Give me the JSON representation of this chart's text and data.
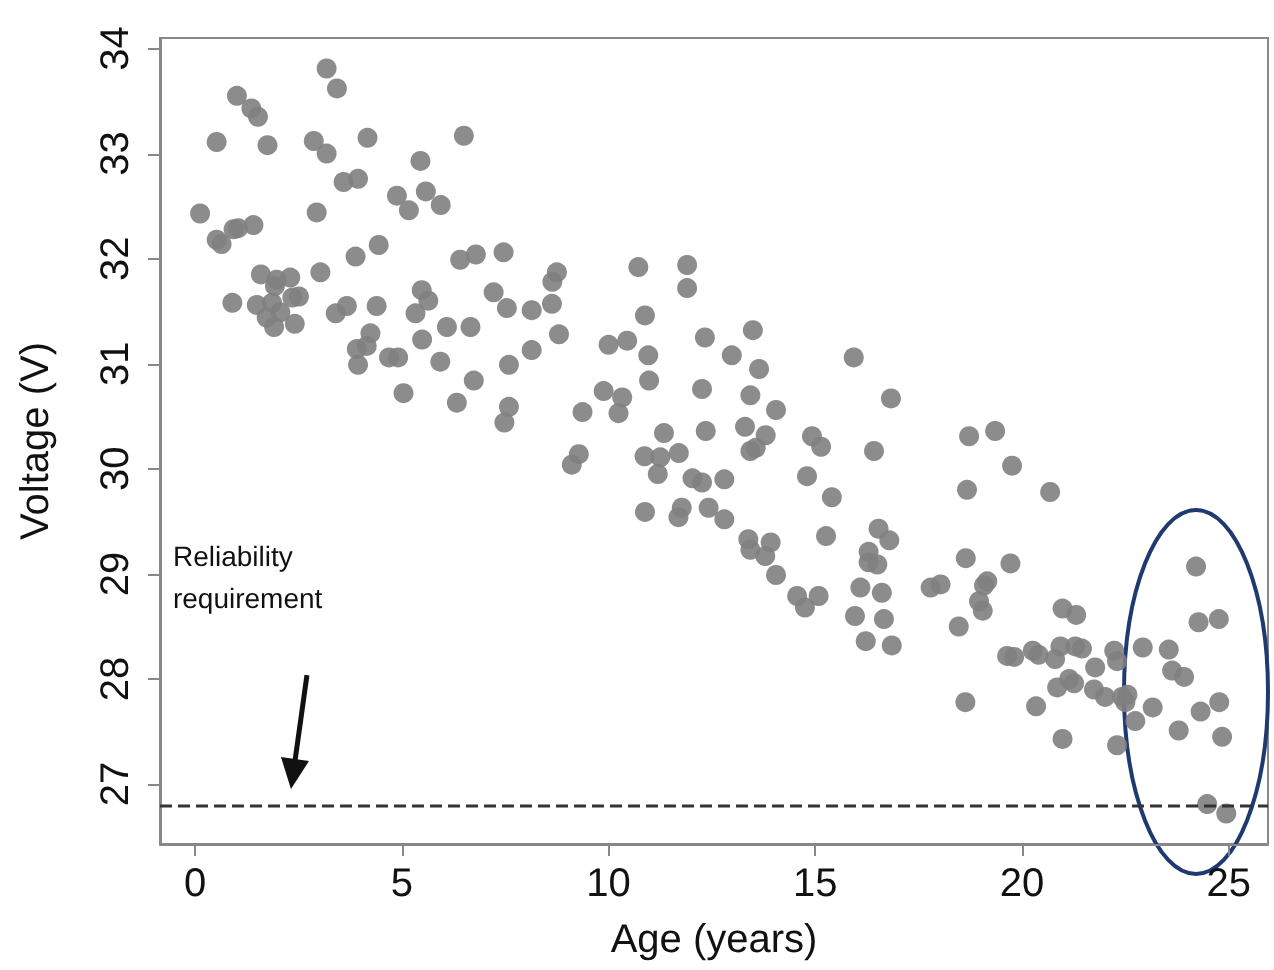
{
  "chart_data": {
    "type": "scatter",
    "xlabel": "Age (years)",
    "ylabel": "Voltage (V)",
    "xlim": [
      -0.85,
      25.95
    ],
    "xticks": [
      0,
      5,
      10,
      15,
      20,
      25
    ],
    "ylim": [
      26.43,
      34.1
    ],
    "yticks": [
      27,
      28,
      29,
      30,
      31,
      32,
      33,
      34
    ],
    "grid": false,
    "marker": "circle",
    "ref_lines": [
      {
        "axis": "y",
        "value": 26.8,
        "label": "Reliability requirement",
        "color": "#333333",
        "line_style": "dashed"
      }
    ],
    "series": [
      {
        "color": "#7f7f7f",
        "x": [
          3.18,
          3.43,
          1.01,
          1.36,
          1.52,
          0.52,
          1.75,
          2.87,
          3.18,
          4.17,
          5.45,
          6.5,
          3.59,
          3.94,
          4.88,
          5.17,
          5.58,
          5.94,
          0.12,
          2.94,
          0.52,
          0.64,
          0.93,
          1.04,
          1.41,
          3.88,
          4.44,
          6.41,
          6.79,
          7.46,
          1.59,
          1.97,
          2.3,
          1.93,
          3.03,
          2.35,
          2.51,
          0.9,
          1.49,
          1.86,
          2.06,
          1.73,
          1.91,
          2.41,
          3.4,
          3.67,
          4.39,
          5.48,
          5.64,
          5.33,
          6.09,
          6.66,
          7.22,
          7.54,
          4.24,
          3.91,
          4.15,
          3.94,
          4.69,
          4.91,
          5.49,
          5.93,
          5.04,
          6.74,
          6.33,
          7.59,
          7.59,
          7.48,
          8.75,
          8.64,
          8.63,
          8.14,
          8.8,
          8.14,
          10.72,
          11.9,
          11.9,
          10.88,
          10.0,
          10.45,
          10.96,
          10.98,
          12.33,
          13.49,
          12.98,
          13.64,
          12.26,
          13.43,
          9.88,
          10.33,
          10.24,
          9.37,
          14.05,
          15.93,
          16.83,
          11.34,
          12.35,
          13.3,
          13.8,
          13.43,
          13.56,
          14.92,
          15.14,
          16.42,
          9.28,
          9.11,
          10.87,
          11.25,
          11.7,
          11.19,
          12.03,
          12.26,
          12.8,
          14.8,
          15.4,
          10.88,
          11.77,
          11.69,
          12.42,
          12.8,
          13.38,
          13.92,
          13.43,
          13.79,
          14.05,
          15.26,
          16.53,
          16.79,
          16.29,
          16.29,
          16.5,
          14.56,
          15.08,
          14.75,
          16.09,
          16.61,
          15.96,
          16.66,
          16.22,
          16.85,
          18.72,
          19.35,
          19.76,
          18.67,
          20.68,
          18.64,
          19.72,
          17.79,
          18.03,
          19.08,
          19.16,
          18.96,
          19.05,
          18.47,
          20.98,
          21.31,
          18.63,
          19.64,
          19.81,
          20.26,
          20.4,
          20.8,
          20.93,
          21.29,
          21.45,
          20.85,
          21.14,
          21.26,
          21.77,
          22.23,
          22.3,
          21.74,
          22.01,
          22.42,
          22.55,
          22.5,
          22.92,
          23.55,
          23.63,
          23.92,
          23.16,
          22.74,
          20.98,
          22.3,
          20.34,
          24.21,
          24.27,
          24.76,
          24.77,
          24.32,
          23.79,
          24.84,
          24.48,
          24.94
        ],
        "values": [
          33.81,
          33.62,
          33.55,
          33.43,
          33.35,
          33.11,
          33.08,
          33.12,
          33.0,
          33.15,
          32.93,
          33.17,
          32.73,
          32.76,
          32.6,
          32.46,
          32.64,
          32.51,
          32.43,
          32.44,
          32.18,
          32.14,
          32.28,
          32.29,
          32.32,
          32.02,
          32.13,
          31.99,
          32.04,
          32.06,
          31.85,
          31.8,
          31.82,
          31.74,
          31.87,
          31.63,
          31.64,
          31.58,
          31.56,
          31.58,
          31.49,
          31.44,
          31.35,
          31.38,
          31.48,
          31.55,
          31.55,
          31.7,
          31.6,
          31.48,
          31.35,
          31.35,
          31.68,
          31.53,
          31.29,
          31.14,
          31.17,
          30.99,
          31.06,
          31.06,
          31.23,
          31.02,
          30.72,
          30.84,
          30.63,
          30.99,
          30.59,
          30.44,
          31.87,
          31.78,
          31.57,
          31.51,
          31.28,
          31.13,
          31.92,
          31.94,
          31.72,
          31.46,
          31.18,
          31.22,
          31.08,
          30.84,
          31.25,
          31.32,
          31.08,
          30.95,
          30.76,
          30.7,
          30.74,
          30.68,
          30.53,
          30.54,
          30.56,
          31.06,
          30.67,
          30.34,
          30.36,
          30.4,
          30.32,
          30.17,
          30.2,
          30.31,
          30.21,
          30.17,
          30.14,
          30.04,
          30.12,
          30.11,
          30.15,
          29.95,
          29.91,
          29.87,
          29.9,
          29.93,
          29.73,
          29.59,
          29.63,
          29.54,
          29.63,
          29.52,
          29.33,
          29.3,
          29.23,
          29.17,
          28.99,
          29.36,
          29.43,
          29.32,
          29.21,
          29.11,
          29.09,
          28.79,
          28.79,
          28.68,
          28.87,
          28.82,
          28.6,
          28.57,
          28.36,
          28.32,
          30.31,
          30.36,
          30.03,
          29.8,
          29.78,
          29.15,
          29.1,
          28.87,
          28.9,
          28.89,
          28.93,
          28.74,
          28.65,
          28.5,
          28.67,
          28.61,
          27.78,
          28.22,
          28.21,
          28.27,
          28.23,
          28.19,
          28.31,
          28.31,
          28.29,
          27.92,
          28.0,
          27.96,
          28.11,
          28.27,
          28.17,
          27.9,
          27.83,
          27.83,
          27.85,
          27.78,
          28.3,
          28.28,
          28.08,
          28.02,
          27.73,
          27.6,
          27.43,
          27.37,
          27.74,
          29.07,
          28.54,
          28.57,
          27.78,
          27.69,
          27.51,
          27.45,
          26.81,
          26.72
        ]
      }
    ]
  }
}
